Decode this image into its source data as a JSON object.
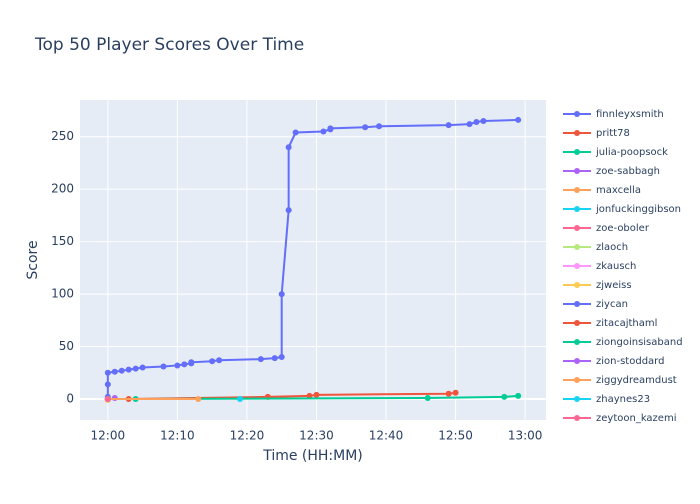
{
  "chart_data": {
    "type": "line",
    "title": "Top 50 Player Scores Over Time",
    "x_label": "Time (HH:MM)",
    "y_label": "Score",
    "xlim": [
      "11:56",
      "13:03"
    ],
    "xticks": [
      "12:00",
      "12:10",
      "12:20",
      "12:30",
      "12:40",
      "12:50",
      "13:00"
    ],
    "ylim": [
      -20,
      285
    ],
    "yticks": [
      0,
      50,
      100,
      150,
      200,
      250
    ],
    "grid": true,
    "legend": "right",
    "series": [
      {
        "name": "finnleyxsmith",
        "color": "#636efa",
        "x": [
          "12:00",
          "12:00",
          "12:00",
          "12:01",
          "12:02",
          "12:03",
          "12:04",
          "12:05",
          "12:08",
          "12:10",
          "12:11",
          "12:12",
          "12:12",
          "12:15",
          "12:16",
          "12:22",
          "12:24",
          "12:25",
          "12:25",
          "12:26",
          "12:26",
          "12:27",
          "12:31",
          "12:32",
          "12:32",
          "12:37",
          "12:39",
          "12:49",
          "12:52",
          "12:53",
          "12:54",
          "12:59"
        ],
        "values": [
          2,
          14,
          25,
          26,
          27,
          28,
          29,
          30,
          31,
          32,
          33,
          34,
          35,
          36,
          37,
          38,
          39,
          40,
          100,
          180,
          240,
          254,
          255,
          257,
          258,
          259,
          260,
          261,
          262,
          264,
          265,
          266
        ]
      },
      {
        "name": "pritt78",
        "color": "#EF553B",
        "x": [
          "12:03",
          "12:23",
          "12:29",
          "12:30",
          "12:49",
          "12:50"
        ],
        "values": [
          0,
          2,
          3,
          4,
          5,
          6
        ]
      },
      {
        "name": "julia-poopsock",
        "color": "#00cc96",
        "x": [
          "12:04",
          "12:46",
          "12:57",
          "12:59"
        ],
        "values": [
          0,
          1,
          2,
          3
        ]
      },
      {
        "name": "zoe-sabbagh",
        "color": "#ab63fa",
        "x": [
          "12:01"
        ],
        "values": [
          1
        ]
      },
      {
        "name": "maxcella",
        "color": "#FFA15A",
        "x": [
          "12:00",
          "12:13"
        ],
        "values": [
          0,
          0
        ]
      },
      {
        "name": "jonfuckinggibson",
        "color": "#19d3f3",
        "x": [
          "12:19"
        ],
        "values": [
          0
        ]
      },
      {
        "name": "zoe-oboler",
        "color": "#FF6692",
        "x": [
          "12:00"
        ],
        "values": [
          0
        ]
      },
      {
        "name": "zlaoch",
        "color": "#B6E880",
        "x": [
          "12:00"
        ],
        "values": [
          0
        ]
      },
      {
        "name": "zkausch",
        "color": "#FF97FF",
        "x": [
          "12:00"
        ],
        "values": [
          0
        ]
      },
      {
        "name": "zjweiss",
        "color": "#FECB52",
        "x": [
          "12:00"
        ],
        "values": [
          -1
        ]
      },
      {
        "name": "ziycan",
        "color": "#636efa",
        "x": [
          "12:00"
        ],
        "values": [
          0
        ]
      },
      {
        "name": "zitacajthaml",
        "color": "#EF553B",
        "x": [
          "12:00"
        ],
        "values": [
          0
        ]
      },
      {
        "name": "ziongoinsisaband",
        "color": "#00cc96",
        "x": [
          "12:00"
        ],
        "values": [
          0
        ]
      },
      {
        "name": "zion-stoddard",
        "color": "#ab63fa",
        "x": [
          "12:00"
        ],
        "values": [
          0
        ]
      },
      {
        "name": "ziggydreamdust",
        "color": "#FFA15A",
        "x": [
          "12:00"
        ],
        "values": [
          0
        ]
      },
      {
        "name": "zhaynes23",
        "color": "#19d3f3",
        "x": [
          "12:00"
        ],
        "values": [
          0
        ]
      },
      {
        "name": "zeytoon_kazemi",
        "color": "#FF6692",
        "x": [
          "12:00"
        ],
        "values": [
          0
        ]
      }
    ]
  }
}
